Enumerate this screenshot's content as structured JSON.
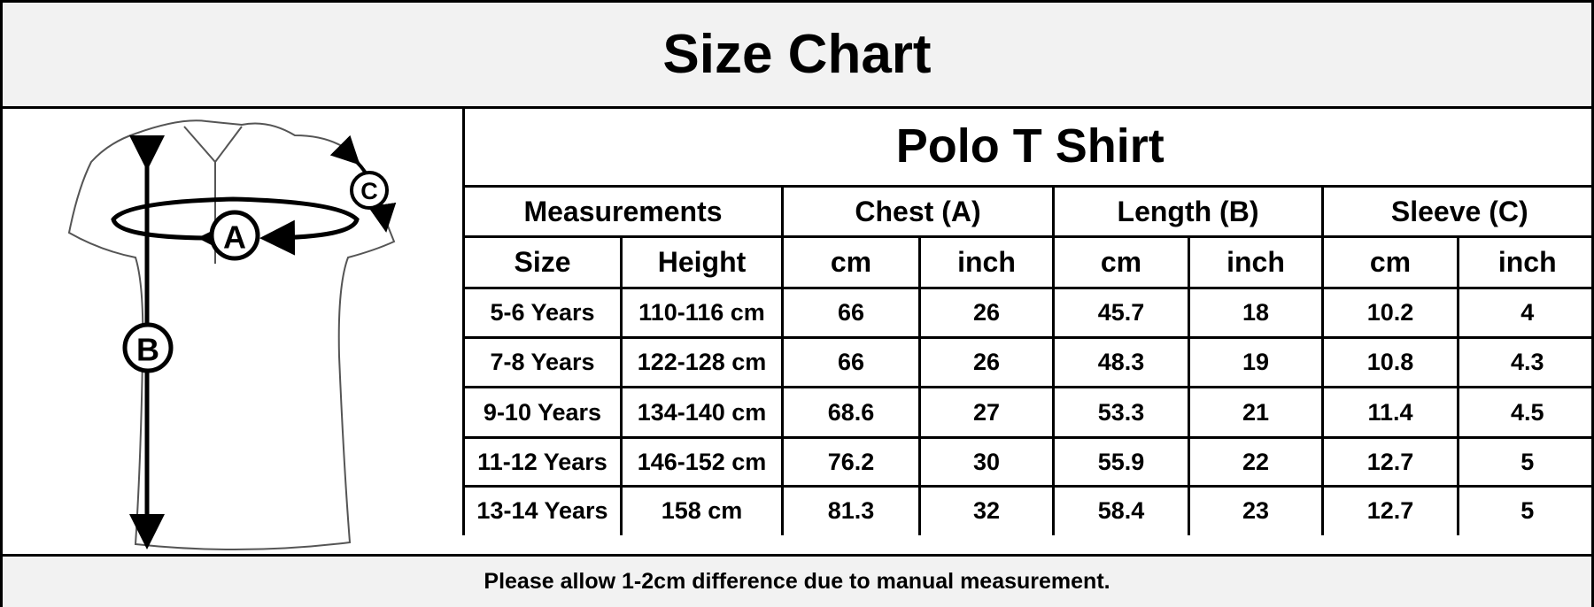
{
  "title": "Size Chart",
  "diagram": {
    "labels": [
      "A",
      "B",
      "C"
    ]
  },
  "table": {
    "title": "Polo T Shirt",
    "groups": [
      "Measurements",
      "Chest (A)",
      "Length (B)",
      "Sleeve (C)"
    ],
    "columns": [
      "Size",
      "Height",
      "cm",
      "inch",
      "cm",
      "inch",
      "cm",
      "inch"
    ],
    "rows": [
      [
        "5-6 Years",
        "110-116 cm",
        66,
        26,
        45.7,
        18,
        10.2,
        4
      ],
      [
        "7-8 Years",
        "122-128 cm",
        66,
        26,
        48.3,
        19,
        10.8,
        4.3
      ],
      [
        "9-10 Years",
        "134-140 cm",
        68.6,
        27,
        53.3,
        21,
        11.4,
        4.5
      ],
      [
        "11-12 Years",
        "146-152 cm",
        76.2,
        30,
        55.9,
        22,
        12.7,
        5
      ],
      [
        "13-14 Years",
        "158 cm",
        81.3,
        32,
        58.4,
        23,
        12.7,
        5
      ]
    ]
  },
  "footer": "Please allow 1-2cm difference due to manual measurement."
}
